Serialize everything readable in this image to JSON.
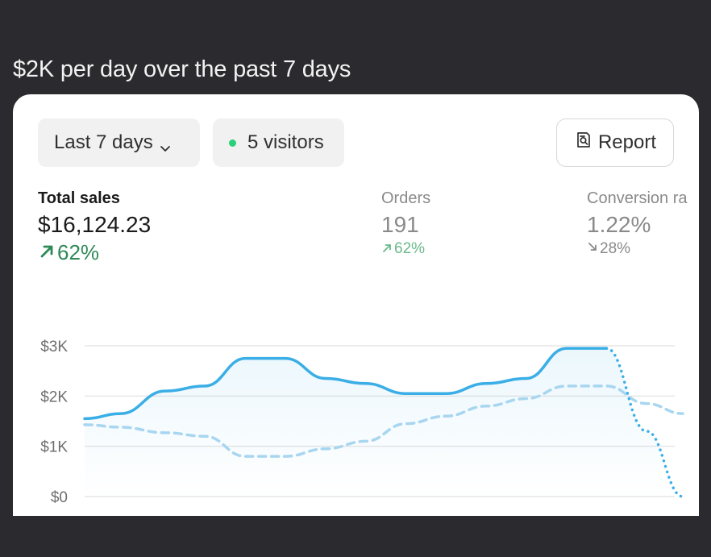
{
  "headline": "$2K per day over the past 7 days",
  "toolbar": {
    "range_label": "Last 7 days",
    "range_icon": "chevron-down-icon",
    "visitors_label": "5 visitors",
    "visitors_dot_color": "#29d17b",
    "report_label": "Report",
    "report_icon": "report-icon"
  },
  "metrics": [
    {
      "label": "Total sales",
      "value": "$16,124.23",
      "delta": "62%",
      "direction": "up",
      "color": "#2f8a57"
    },
    {
      "label": "Orders",
      "value": "191",
      "delta": "62%",
      "direction": "up",
      "color": "#6ab98a"
    },
    {
      "label": "Conversion ra",
      "value": "1.22%",
      "delta": "28%",
      "direction": "down",
      "color": "#8a8a8a"
    }
  ],
  "chart_data": {
    "type": "line",
    "y_ticks": [
      "$3K",
      "$2K",
      "$1K",
      "$0"
    ],
    "ylim": [
      0,
      3000
    ],
    "grid": true,
    "series": [
      {
        "style": "solid",
        "color": "#3aaee6",
        "points": [
          [
            0,
            1550
          ],
          [
            0.45,
            1650
          ],
          [
            1,
            2100
          ],
          [
            1.5,
            2200
          ],
          [
            2,
            2750
          ],
          [
            2.5,
            2750
          ],
          [
            3,
            2350
          ],
          [
            3.5,
            2250
          ],
          [
            4,
            2050
          ],
          [
            4.5,
            2050
          ],
          [
            5,
            2250
          ],
          [
            5.5,
            2350
          ],
          [
            6,
            2950
          ],
          [
            6.5,
            2950
          ],
          [
            7,
            1300
          ],
          [
            7.45,
            0
          ]
        ]
      },
      {
        "style": "dotted",
        "color": "#3aaee6",
        "points": [
          [
            6.5,
            2950
          ],
          [
            7,
            1300
          ],
          [
            7.45,
            0
          ]
        ]
      },
      {
        "style": "dashed",
        "color": "#a8d6f0",
        "points": [
          [
            0,
            1430
          ],
          [
            0.45,
            1380
          ],
          [
            1,
            1270
          ],
          [
            1.5,
            1200
          ],
          [
            2,
            800
          ],
          [
            2.5,
            800
          ],
          [
            3,
            950
          ],
          [
            3.5,
            1100
          ],
          [
            4,
            1450
          ],
          [
            4.5,
            1600
          ],
          [
            5,
            1800
          ],
          [
            5.5,
            1950
          ],
          [
            6,
            2200
          ],
          [
            6.5,
            2200
          ],
          [
            7,
            1850
          ],
          [
            7.45,
            1650
          ]
        ]
      }
    ]
  }
}
